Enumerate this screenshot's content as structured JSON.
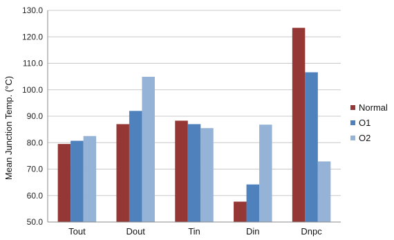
{
  "chart_data": {
    "type": "bar",
    "title": "",
    "xlabel": "",
    "ylabel": "Mean Junction Temp. (°C)",
    "ylim": [
      50,
      130
    ],
    "yticks": [
      "50.0",
      "60.0",
      "70.0",
      "80.0",
      "90.0",
      "100.0",
      "110.0",
      "120.0",
      "130.0"
    ],
    "categories": [
      "Tout",
      "Dout",
      "Tin",
      "Din",
      "Dnpc"
    ],
    "series": [
      {
        "name": "Normal",
        "color": "#953735",
        "values": [
          79.5,
          87.0,
          88.3,
          57.7,
          123.4
        ]
      },
      {
        "name": "O1",
        "color": "#4f81bd",
        "values": [
          80.7,
          92.0,
          87.0,
          64.2,
          106.6
        ]
      },
      {
        "name": "O2",
        "color": "#95b3d7",
        "values": [
          82.5,
          104.9,
          85.5,
          86.8,
          72.9
        ]
      }
    ],
    "grid": true,
    "legend_position": "right"
  }
}
